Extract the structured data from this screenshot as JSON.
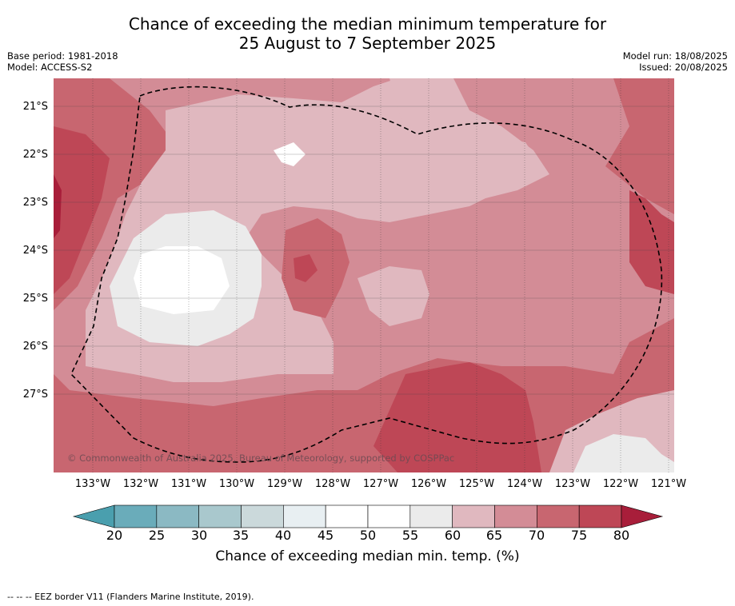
{
  "title_line1": "Chance of exceeding the median minimum temperature for",
  "title_line2": "25 August to 7 September 2025",
  "meta_left": [
    "Base period: 1981-2018",
    "Model: ACCESS-S2"
  ],
  "meta_right": [
    "Model run: 18/08/2025",
    "Issued: 20/08/2025"
  ],
  "lat_labels": [
    "21°S",
    "22°S",
    "23°S",
    "24°S",
    "25°S",
    "26°S",
    "27°S"
  ],
  "lon_labels": [
    "133°W",
    "132°W",
    "131°W",
    "130°W",
    "129°W",
    "128°W",
    "127°W",
    "126°W",
    "125°W",
    "124°W",
    "123°W",
    "122°W",
    "121°W"
  ],
  "copyright": "© Commonwealth of Australia 2025, Bureau of Meteorology, supported by COSPPac",
  "colorbar": {
    "ticks": [
      "20",
      "25",
      "30",
      "35",
      "40",
      "45",
      "50",
      "55",
      "60",
      "65",
      "70",
      "75",
      "80"
    ],
    "label": "Chance of exceeding median min. temp. (%)",
    "colors": [
      "#6aacba",
      "#8bb9c3",
      "#a9c8cd",
      "#cbd9db",
      "#e8eff2",
      "#ffffff",
      "#ffffff",
      "#ebebeb",
      "#e0b8bf",
      "#d38c96",
      "#c86670",
      "#be4756"
    ],
    "under_color": "#4a9fae",
    "over_color": "#a81e3a"
  },
  "footer": "--  --  -- EEZ border V11 (Flanders Marine Institute, 2019)."
}
